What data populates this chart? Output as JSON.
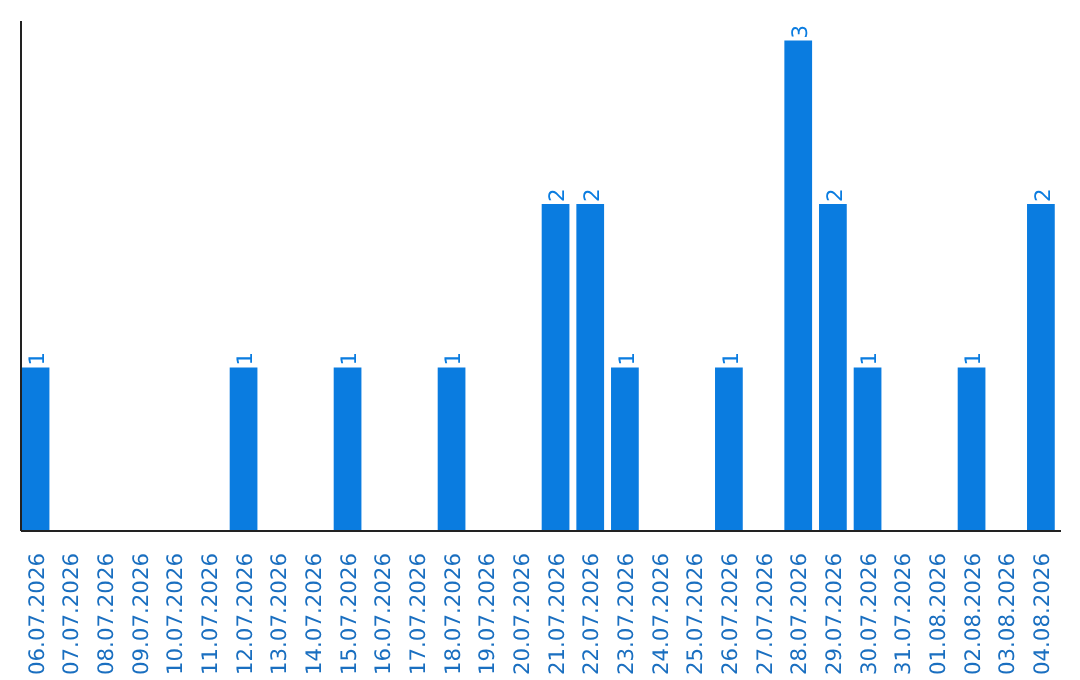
{
  "chart_data": {
    "type": "bar",
    "categories": [
      "06.07.2026",
      "07.07.2026",
      "08.07.2026",
      "09.07.2026",
      "10.07.2026",
      "11.07.2026",
      "12.07.2026",
      "13.07.2026",
      "14.07.2026",
      "15.07.2026",
      "16.07.2026",
      "17.07.2026",
      "18.07.2026",
      "19.07.2026",
      "20.07.2026",
      "21.07.2026",
      "22.07.2026",
      "23.07.2026",
      "24.07.2026",
      "25.07.2026",
      "26.07.2026",
      "27.07.2026",
      "28.07.2026",
      "29.07.2026",
      "30.07.2026",
      "31.07.2026",
      "01.08.2026",
      "02.08.2026",
      "03.08.2026",
      "04.08.2026"
    ],
    "values": [
      1,
      0,
      0,
      0,
      0,
      0,
      1,
      0,
      0,
      1,
      0,
      0,
      1,
      0,
      0,
      2,
      2,
      1,
      0,
      0,
      1,
      0,
      3,
      2,
      1,
      0,
      0,
      1,
      0,
      2
    ],
    "value_labels": [
      "1",
      null,
      null,
      null,
      null,
      null,
      "1",
      null,
      null,
      "1",
      null,
      null,
      "1",
      null,
      null,
      "2",
      "2",
      "1",
      null,
      null,
      "1",
      null,
      "3",
      "2",
      "1",
      null,
      null,
      "1",
      null,
      "2"
    ],
    "color": "#0a7ce0",
    "grid": false,
    "tick_labels": "x"
  }
}
